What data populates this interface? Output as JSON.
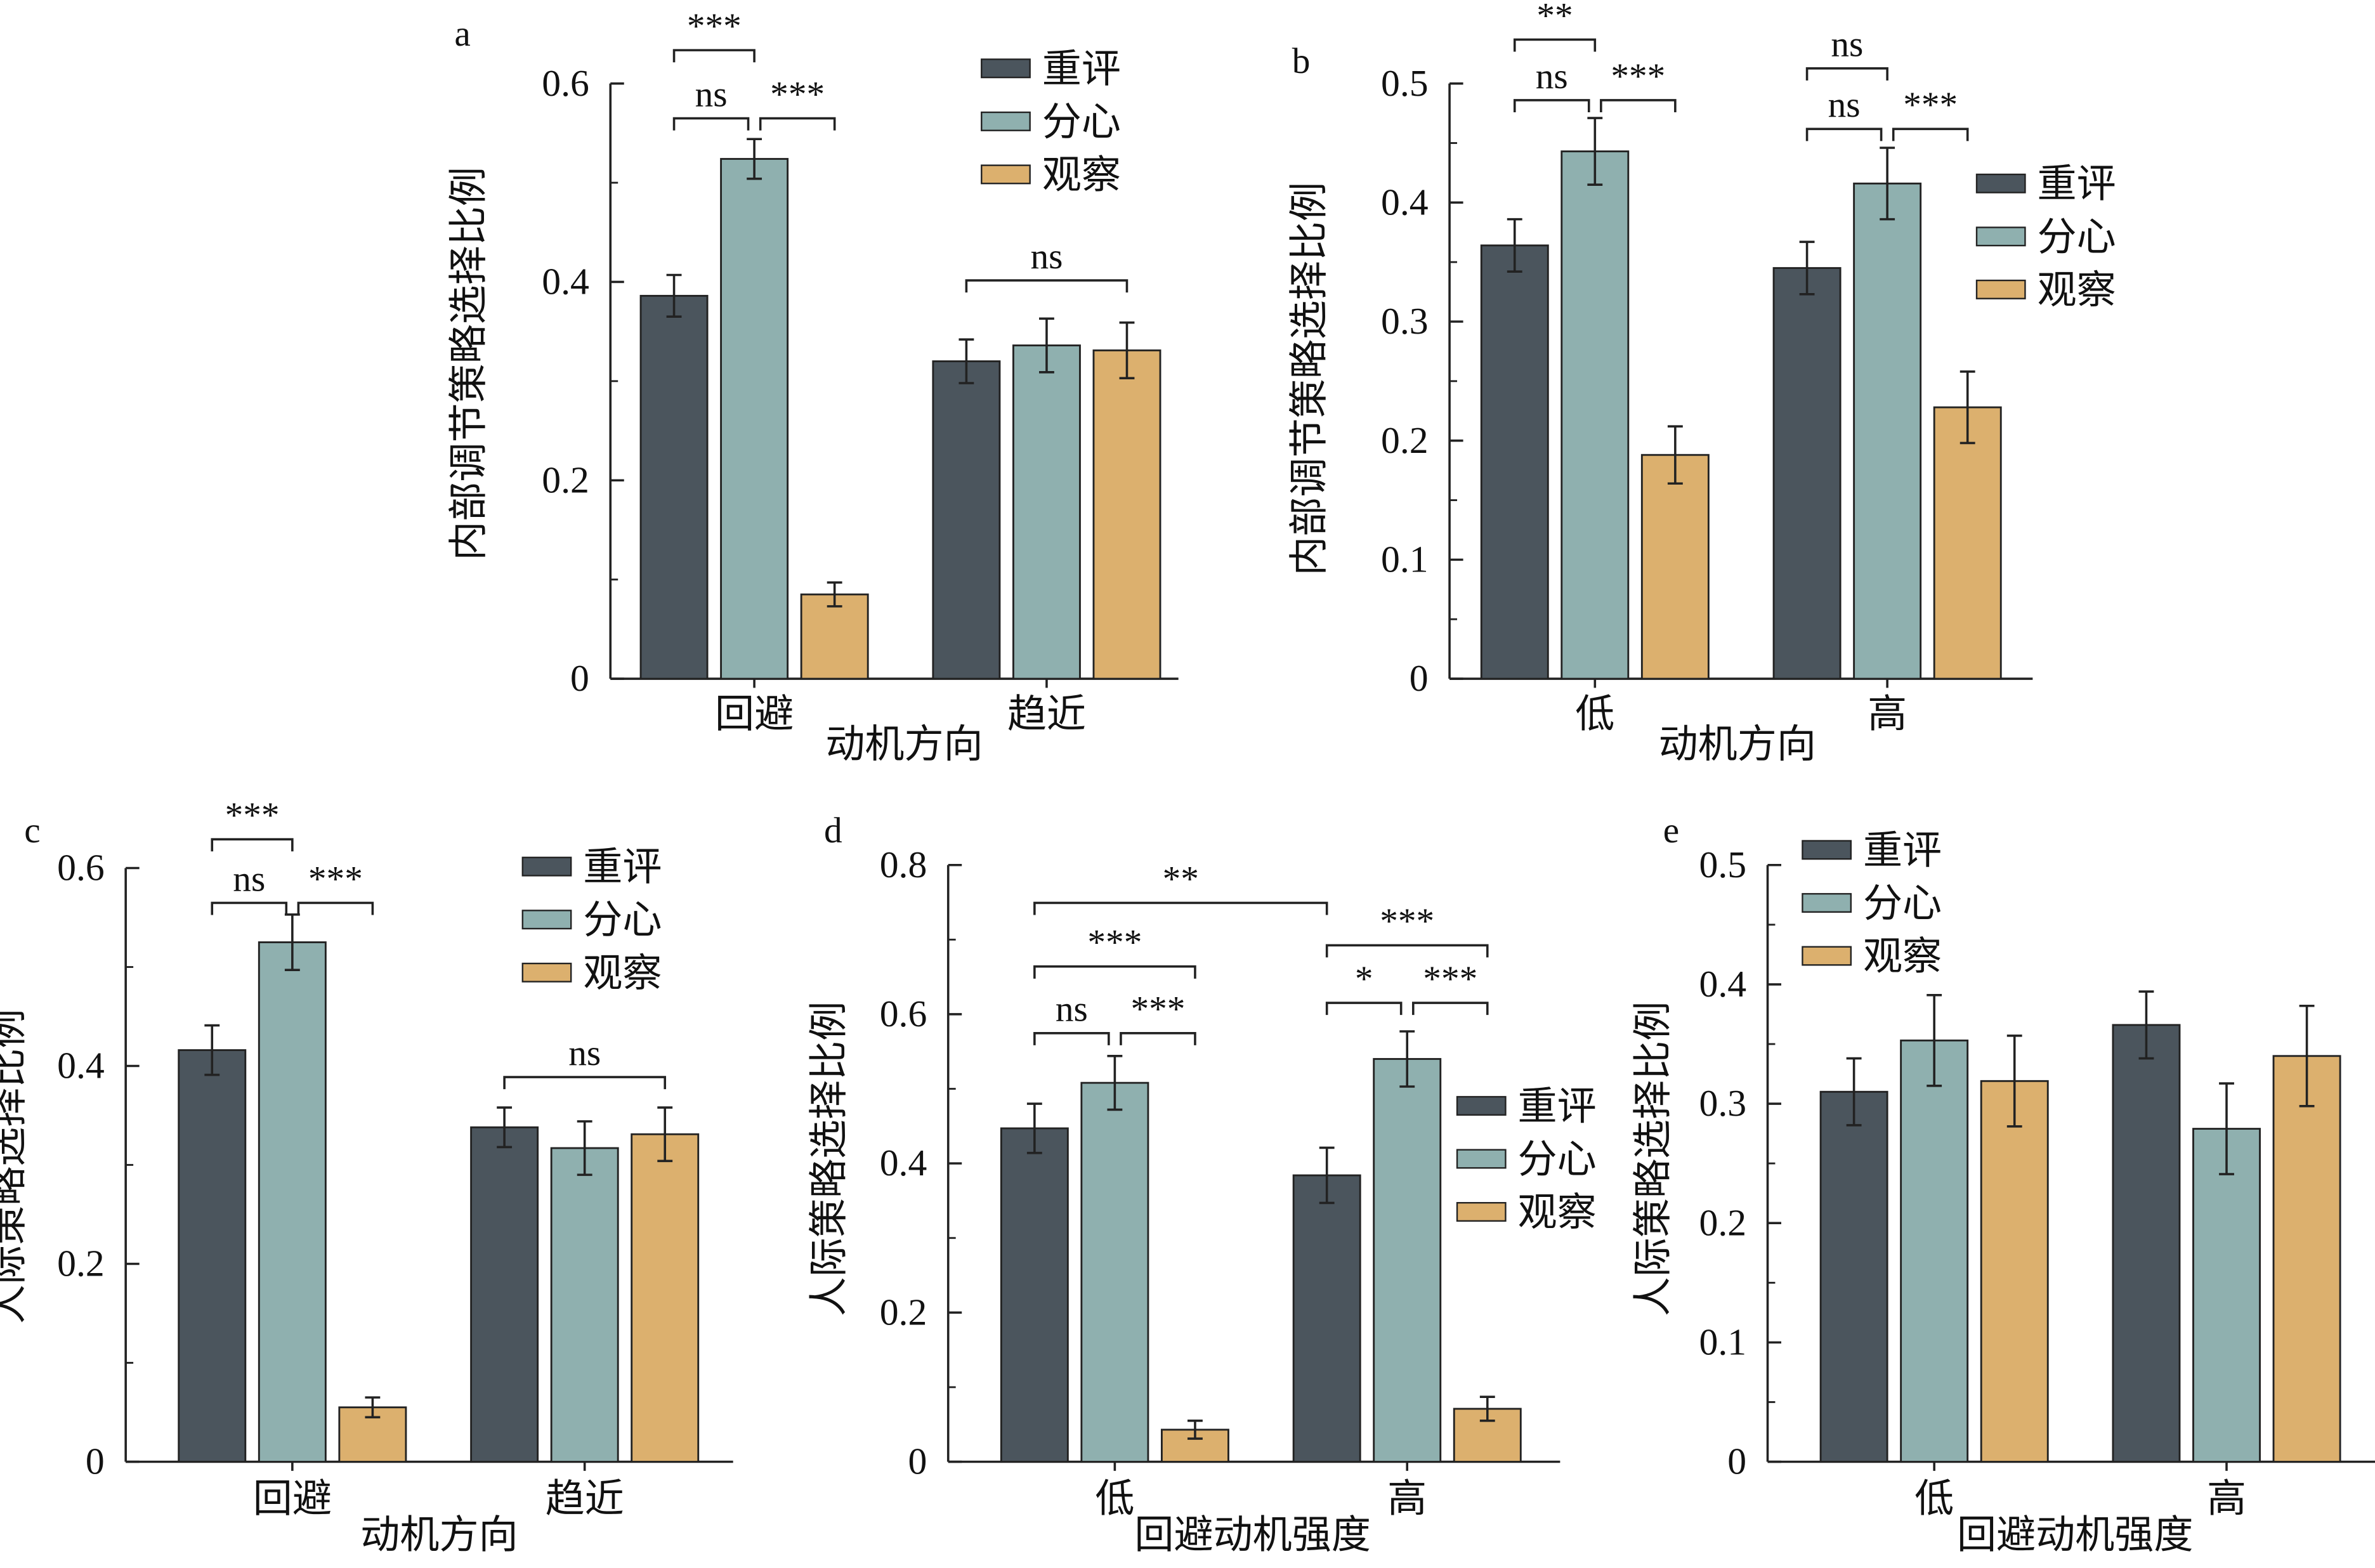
{
  "colors": {
    "重评": "#4b555d",
    "分心": "#8fb0af",
    "观察": "#dcb06e"
  },
  "legend": [
    "重评",
    "分心",
    "观察"
  ],
  "chart_data": [
    {
      "panel": "a",
      "type": "bar",
      "ylabel": "内部调节策略选择比例",
      "xlabel": "动机方向",
      "categories": [
        "回避",
        "趋近"
      ],
      "ylim": [
        0,
        0.6
      ],
      "yticks": [
        "0",
        "0.2",
        "0.4",
        "0.6"
      ],
      "ytick_values": [
        0,
        0.2,
        0.4,
        0.6
      ],
      "series": [
        {
          "name": "重评",
          "values": [
            0.386,
            0.32
          ],
          "errors": [
            0.021,
            0.022
          ]
        },
        {
          "name": "分心",
          "values": [
            0.524,
            0.336
          ],
          "errors": [
            0.02,
            0.027
          ]
        },
        {
          "name": "观察",
          "values": [
            0.085,
            0.331
          ],
          "errors": [
            0.012,
            0.028
          ]
        }
      ],
      "annotations": [
        {
          "group": 0,
          "from": 0,
          "to": 1,
          "label": "ns"
        },
        {
          "group": 0,
          "from": 1,
          "to": 2,
          "label": "***"
        },
        {
          "group": 0,
          "from": 0,
          "to": 1,
          "label": "***",
          "span": "重评-分心顶部"
        },
        {
          "group": 1,
          "from": 0,
          "to": 2,
          "label": "ns"
        }
      ]
    },
    {
      "panel": "b",
      "type": "bar",
      "ylabel": "内部调节策略选择比例",
      "xlabel": "动机方向",
      "categories": [
        "低",
        "高"
      ],
      "ylim": [
        0,
        0.5
      ],
      "yticks": [
        "0",
        "0.1",
        "0.2",
        "0.3",
        "0.4",
        "0.5"
      ],
      "ytick_values": [
        0,
        0.1,
        0.2,
        0.3,
        0.4,
        0.5
      ],
      "series": [
        {
          "name": "重评",
          "values": [
            0.364,
            0.345
          ],
          "errors": [
            0.022,
            0.022
          ]
        },
        {
          "name": "分心",
          "values": [
            0.443,
            0.416
          ],
          "errors": [
            0.028,
            0.03
          ]
        },
        {
          "name": "观察",
          "values": [
            0.188,
            0.228
          ],
          "errors": [
            0.024,
            0.03
          ]
        }
      ],
      "annotations": [
        {
          "group": 0,
          "from": 0,
          "to": 1,
          "label": "ns"
        },
        {
          "group": 0,
          "from": 1,
          "to": 2,
          "label": "***"
        },
        {
          "group": 0,
          "from": 0,
          "to": 1,
          "label": "**"
        },
        {
          "group": 1,
          "from": 0,
          "to": 1,
          "label": "ns"
        },
        {
          "group": 1,
          "from": 1,
          "to": 2,
          "label": "***"
        },
        {
          "group": 1,
          "from": 0,
          "to": 1,
          "label": "ns"
        }
      ]
    },
    {
      "panel": "c",
      "type": "bar",
      "ylabel": "人际策略选择比例",
      "xlabel": "动机方向",
      "categories": [
        "回避",
        "趋近"
      ],
      "ylim": [
        0,
        0.6
      ],
      "yticks": [
        "0",
        "0.2",
        "0.4",
        "0.6"
      ],
      "ytick_values": [
        0,
        0.2,
        0.4,
        0.6
      ],
      "series": [
        {
          "name": "重评",
          "values": [
            0.416,
            0.338
          ],
          "errors": [
            0.025,
            0.02
          ]
        },
        {
          "name": "分心",
          "values": [
            0.525,
            0.317
          ],
          "errors": [
            0.028,
            0.027
          ]
        },
        {
          "name": "观察",
          "values": [
            0.055,
            0.331
          ],
          "errors": [
            0.01,
            0.027
          ]
        }
      ],
      "annotations": [
        {
          "group": 0,
          "from": 0,
          "to": 1,
          "label": "ns"
        },
        {
          "group": 0,
          "from": 1,
          "to": 2,
          "label": "***"
        },
        {
          "group": 0,
          "from": 0,
          "to": 1,
          "label": "***"
        },
        {
          "group": 1,
          "from": 0,
          "to": 2,
          "label": "ns"
        }
      ]
    },
    {
      "panel": "d",
      "type": "bar",
      "ylabel": "人际策略选择比例",
      "xlabel": "回避动机强度",
      "categories": [
        "低",
        "高"
      ],
      "ylim": [
        0,
        0.8
      ],
      "yticks": [
        "0",
        "0.2",
        "0.4",
        "0.6",
        "0.8"
      ],
      "ytick_values": [
        0,
        0.2,
        0.4,
        0.6,
        0.8
      ],
      "series": [
        {
          "name": "重评",
          "values": [
            0.447,
            0.384
          ],
          "errors": [
            0.033,
            0.037
          ]
        },
        {
          "name": "分心",
          "values": [
            0.508,
            0.54
          ],
          "errors": [
            0.036,
            0.037
          ]
        },
        {
          "name": "观察",
          "values": [
            0.043,
            0.071
          ],
          "errors": [
            0.012,
            0.016
          ]
        }
      ],
      "annotations": [
        {
          "group": 0,
          "from": 0,
          "to": 1,
          "label": "ns"
        },
        {
          "group": 0,
          "from": 1,
          "to": 2,
          "label": "***"
        },
        {
          "group": 0,
          "from": 0,
          "to": 2,
          "label": "***"
        },
        {
          "group": 0,
          "from": 0,
          "to": 0,
          "label": "**",
          "to_group": 1
        },
        {
          "group": 1,
          "from": 0,
          "to": 1,
          "label": "*"
        },
        {
          "group": 1,
          "from": 1,
          "to": 2,
          "label": "***"
        },
        {
          "group": 1,
          "from": 0,
          "to": 2,
          "label": "***"
        }
      ]
    },
    {
      "panel": "e",
      "type": "bar",
      "ylabel": "人际策略选择比例",
      "xlabel": "回避动机强度",
      "categories": [
        "低",
        "高"
      ],
      "ylim": [
        0,
        0.5
      ],
      "yticks": [
        "0",
        "0.1",
        "0.2",
        "0.3",
        "0.4",
        "0.5"
      ],
      "ytick_values": [
        0,
        0.1,
        0.2,
        0.3,
        0.4,
        0.5
      ],
      "series": [
        {
          "name": "重评",
          "values": [
            0.31,
            0.366
          ],
          "errors": [
            0.028,
            0.028
          ]
        },
        {
          "name": "分心",
          "values": [
            0.353,
            0.279
          ],
          "errors": [
            0.038,
            0.038
          ]
        },
        {
          "name": "观察",
          "values": [
            0.319,
            0.34
          ],
          "errors": [
            0.038,
            0.042
          ]
        }
      ],
      "annotations": []
    }
  ]
}
